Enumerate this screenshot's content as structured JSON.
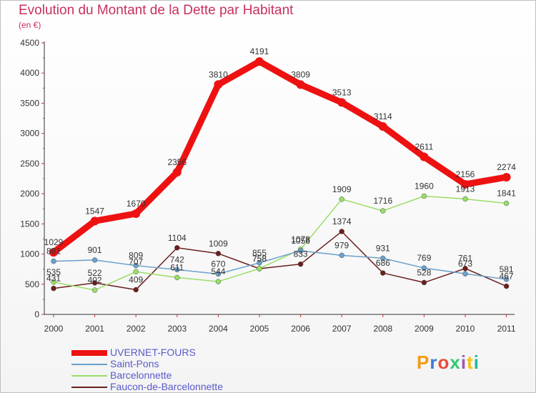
{
  "title": "Evolution du Montant de la Dette par Habitant",
  "subtitle": "(en €)",
  "logo": {
    "text": "Proxiti",
    "colors": [
      "#f39c12",
      "#3a7bd5",
      "#e74c3c",
      "#2ecc71",
      "#9b59b6",
      "#f1c40f",
      "#1abc9c"
    ]
  },
  "chart_data": {
    "type": "line",
    "categories": [
      "2000",
      "2001",
      "2002",
      "2003",
      "2004",
      "2005",
      "2006",
      "2007",
      "2008",
      "2009",
      "2010",
      "2011"
    ],
    "ylim": [
      0,
      4500
    ],
    "yticks": [
      0,
      500,
      1000,
      1500,
      2000,
      2500,
      3000,
      3500,
      4000,
      4500
    ],
    "grid": false,
    "legend": "bottom-left",
    "series": [
      {
        "name": "UVERNET-FOURS",
        "color": "#ee1111",
        "values": [
          1029,
          1547,
          1670,
          2356,
          3810,
          4191,
          3809,
          3513,
          3114,
          2611,
          2156,
          2274
        ]
      },
      {
        "name": "Saint-Pons",
        "color": "#6aa0cc",
        "values": [
          881,
          901,
          809,
          742,
          670,
          855,
          1056,
          979,
          931,
          769,
          673,
          581
        ]
      },
      {
        "name": "Barcelonnette",
        "color": "#99dd66",
        "values": [
          535,
          402,
          707,
          611,
          544,
          758,
          1078,
          1909,
          1716,
          1960,
          1913,
          1841
        ]
      },
      {
        "name": "Faucon-de-Barcelonnette",
        "color": "#6b1e1e",
        "values": [
          431,
          522,
          409,
          1104,
          1009,
          758,
          833,
          1374,
          686,
          528,
          761,
          467
        ]
      }
    ]
  }
}
